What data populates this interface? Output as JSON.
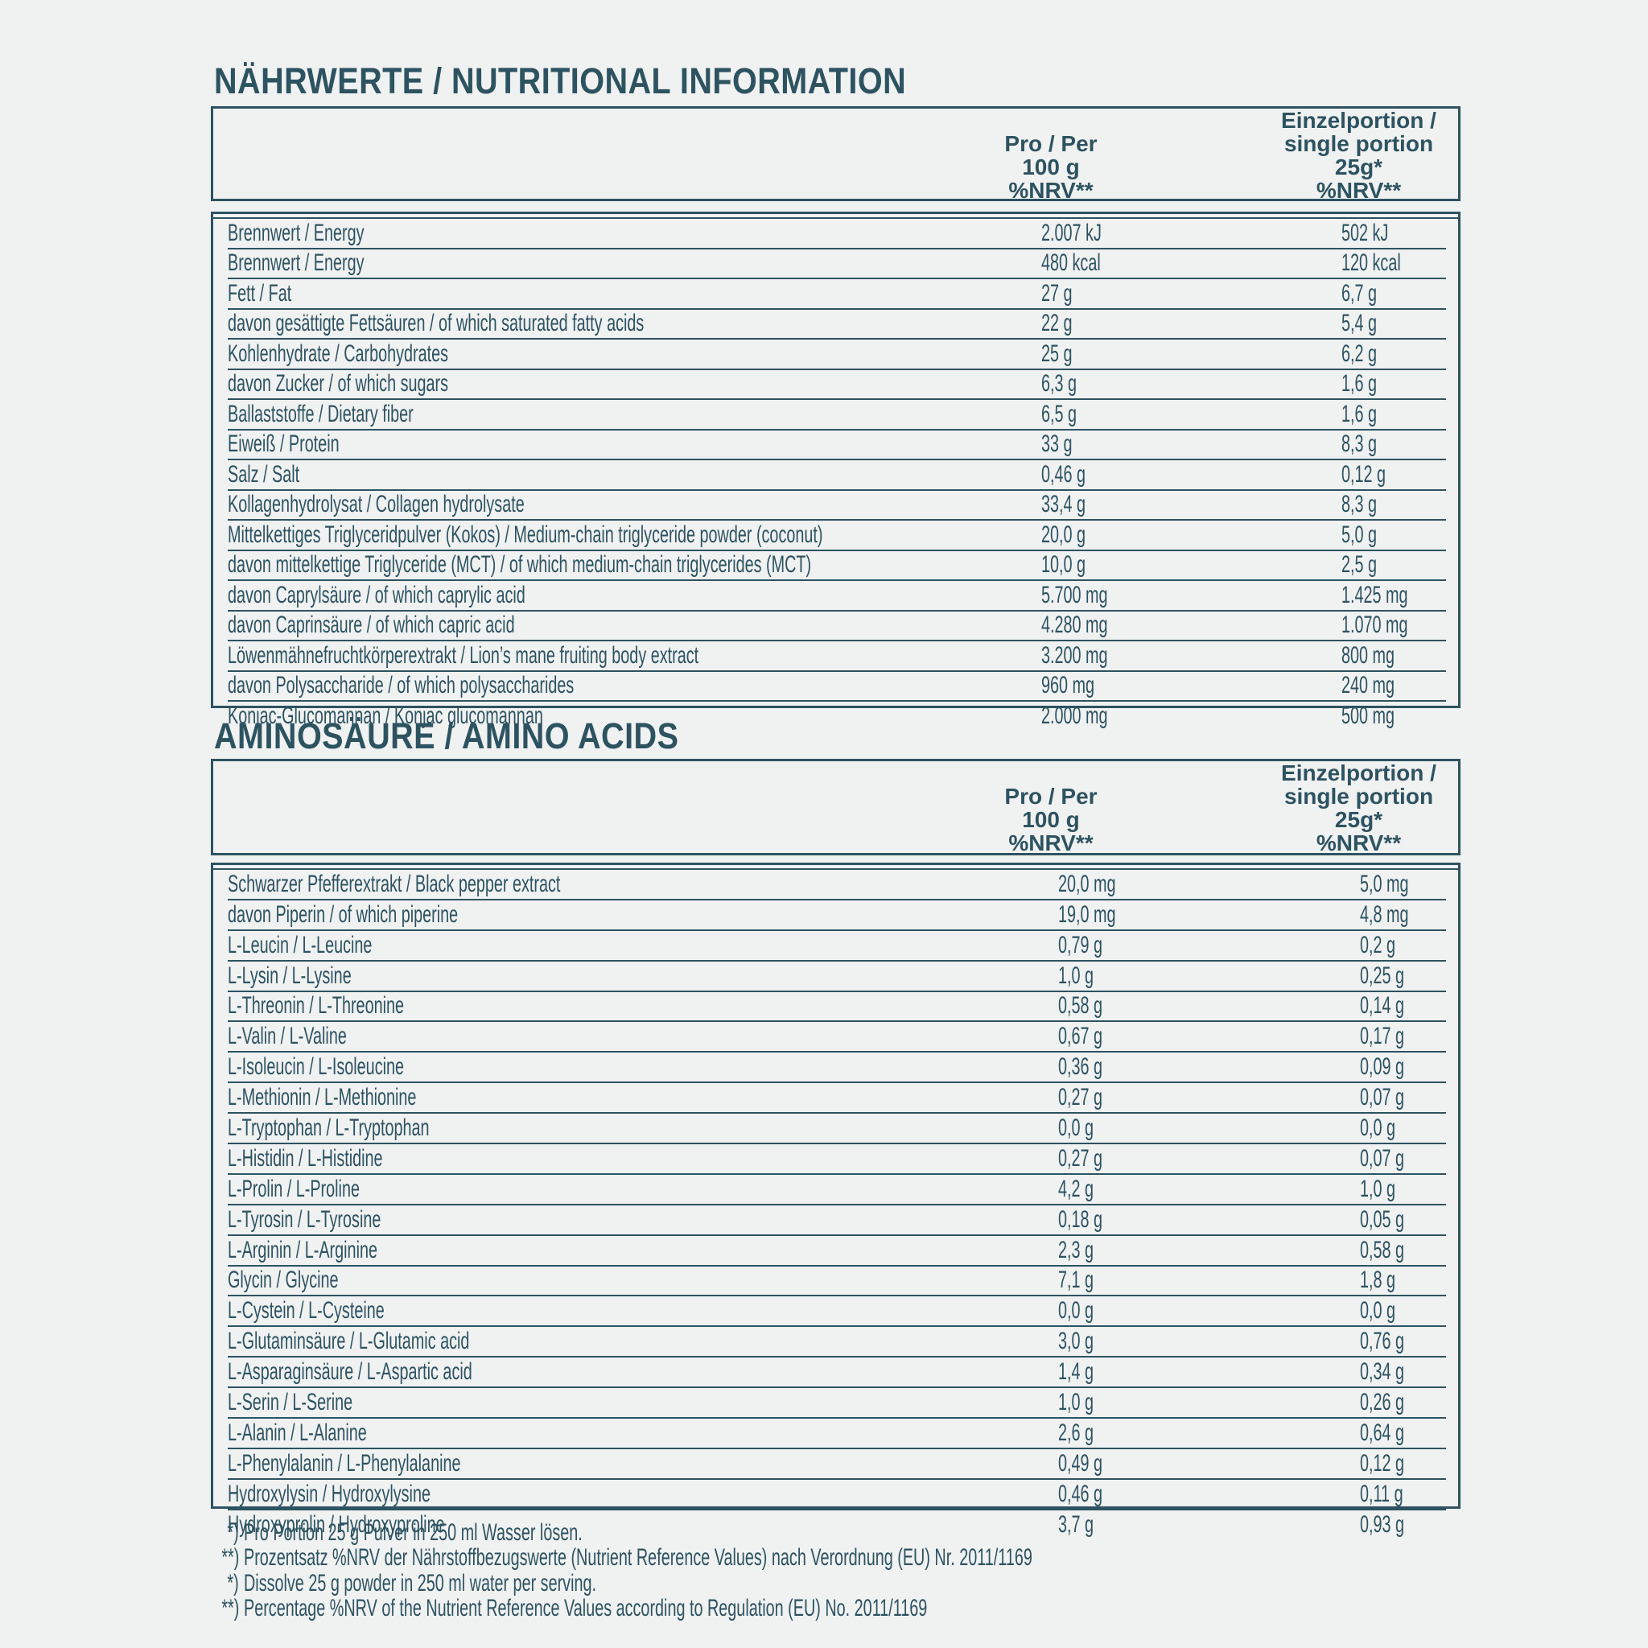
{
  "theme": {
    "ink_color": "#2d5361",
    "background_color": "#f0f1f1"
  },
  "nutrition": {
    "title": "NÄHRWERTE / NUTRITIONAL INFORMATION",
    "col_per100": [
      "Pro / Per",
      "100 g",
      "%NRV**"
    ],
    "col_portion": [
      "Einzelportion /",
      "single portion",
      "25g*",
      "%NRV**"
    ],
    "rows": [
      {
        "label": "Brennwert / Energy",
        "per100": "2.007 kJ",
        "portion": "502 kJ"
      },
      {
        "label": "Brennwert / Energy",
        "per100": "480 kcal",
        "portion": "120 kcal"
      },
      {
        "label": "Fett / Fat",
        "per100": "27 g",
        "portion": "6,7 g"
      },
      {
        "label": "davon gesättigte Fettsäuren / of which saturated fatty acids",
        "per100": "22 g",
        "portion": "5,4 g"
      },
      {
        "label": "Kohlenhydrate / Carbohydrates",
        "per100": "25 g",
        "portion": "6,2 g"
      },
      {
        "label": "davon Zucker / of which sugars",
        "per100": "6,3 g",
        "portion": "1,6 g"
      },
      {
        "label": "Ballaststoffe / Dietary fiber",
        "per100": "6,5 g",
        "portion": "1,6 g"
      },
      {
        "label": "Eiweiß / Protein",
        "per100": "33 g",
        "portion": "8,3 g"
      },
      {
        "label": "Salz / Salt",
        "per100": "0,46 g",
        "portion": "0,12 g"
      },
      {
        "label": "Kollagenhydrolysat / Collagen hydrolysate",
        "per100": "33,4 g",
        "portion": "8,3 g"
      },
      {
        "label": "Mittelkettiges Triglyceridpulver (Kokos) / Medium-chain triglyceride powder (coconut)",
        "per100": "20,0 g",
        "portion": "5,0 g"
      },
      {
        "label": "davon mittelkettige Triglyceride (MCT) / of which medium-chain triglycerides (MCT)",
        "per100": "10,0 g",
        "portion": "2,5 g"
      },
      {
        "label": "davon Caprylsäure / of which caprylic acid",
        "per100": "5.700 mg",
        "portion": "1.425 mg"
      },
      {
        "label": "davon Caprinsäure / of which capric acid",
        "per100": "4.280 mg",
        "portion": "1.070 mg"
      },
      {
        "label": "Löwenmähnefruchtkörperextrakt / Lion’s mane fruiting body extract",
        "per100": "3.200 mg",
        "portion": "800 mg"
      },
      {
        "label": "davon Polysaccharide / of which polysaccharides",
        "per100": "960 mg",
        "portion": "240 mg"
      },
      {
        "label": "Konjac-Glucomannan / Konjac glucomannan",
        "per100": "2.000 mg",
        "portion": "500 mg"
      }
    ]
  },
  "amino": {
    "title": "AMINOSÄURE / AMINO ACIDS",
    "col_per100": [
      "Pro / Per",
      "100 g",
      "%NRV**"
    ],
    "col_portion": [
      "Einzelportion /",
      "single portion",
      "25g*",
      "%NRV**"
    ],
    "rows": [
      {
        "label": "Schwarzer Pfefferextrakt / Black pepper extract",
        "per100": "20,0 mg",
        "portion": "5,0 mg"
      },
      {
        "label": "davon Piperin / of which piperine",
        "per100": "19,0 mg",
        "portion": "4,8 mg"
      },
      {
        "label": "L-Leucin / L-Leucine",
        "per100": "0,79 g",
        "portion": "0,2 g"
      },
      {
        "label": "L-Lysin / L-Lysine",
        "per100": "1,0 g",
        "portion": "0,25 g"
      },
      {
        "label": "L-Threonin / L-Threonine",
        "per100": "0,58 g",
        "portion": "0,14 g"
      },
      {
        "label": "L-Valin / L-Valine",
        "per100": "0,67 g",
        "portion": "0,17 g"
      },
      {
        "label": "L-Isoleucin / L-Isoleucine",
        "per100": "0,36 g",
        "portion": "0,09 g"
      },
      {
        "label": "L-Methionin / L-Methionine",
        "per100": "0,27 g",
        "portion": "0,07 g"
      },
      {
        "label": "L-Tryptophan / L-Tryptophan",
        "per100": "0,0 g",
        "portion": "0,0 g"
      },
      {
        "label": "L-Histidin / L-Histidine",
        "per100": "0,27 g",
        "portion": "0,07 g"
      },
      {
        "label": "L-Prolin / L-Proline",
        "per100": "4,2 g",
        "portion": "1,0 g"
      },
      {
        "label": "L-Tyrosin / L-Tyrosine",
        "per100": "0,18 g",
        "portion": "0,05 g"
      },
      {
        "label": "L-Arginin / L-Arginine",
        "per100": "2,3 g",
        "portion": "0,58 g"
      },
      {
        "label": "Glycin / Glycine",
        "per100": "7,1 g",
        "portion": "1,8 g"
      },
      {
        "label": "L-Cystein / L-Cysteine",
        "per100": "0,0 g",
        "portion": "0,0 g"
      },
      {
        "label": "L-Glutaminsäure / L-Glutamic acid",
        "per100": "3,0 g",
        "portion": "0,76 g"
      },
      {
        "label": "L-Asparaginsäure / L-Aspartic acid",
        "per100": "1,4 g",
        "portion": "0,34 g"
      },
      {
        "label": "L-Serin / L-Serine",
        "per100": "1,0 g",
        "portion": "0,26 g"
      },
      {
        "label": "L-Alanin / L-Alanine",
        "per100": "2,6 g",
        "portion": "0,64 g"
      },
      {
        "label": "L-Phenylalanin / L-Phenylalanine",
        "per100": "0,49 g",
        "portion": "0,12 g"
      },
      {
        "label": "Hydroxylysin / Hydroxylysine",
        "per100": "0,46 g",
        "portion": "0,11 g"
      },
      {
        "label": "Hydroxyprolin / Hydroxyproline",
        "per100": "3,7 g",
        "portion": "0,93 g"
      }
    ]
  },
  "footnotes": [
    {
      "marker": "*)",
      "text": "Pro Portion 25 g Pulver in 250 ml Wasser lösen."
    },
    {
      "marker": "**)",
      "text": "Prozentsatz %NRV der Nährstoffbezugswerte (Nutrient Reference Values) nach Verordnung (EU) Nr. 2011/1169"
    },
    {
      "marker": "*)",
      "text": "Dissolve 25 g powder in 250 ml water per serving."
    },
    {
      "marker": "**)",
      "text": "Percentage %NRV of the Nutrient Reference Values according to Regulation (EU) No. 2011/1169"
    }
  ]
}
